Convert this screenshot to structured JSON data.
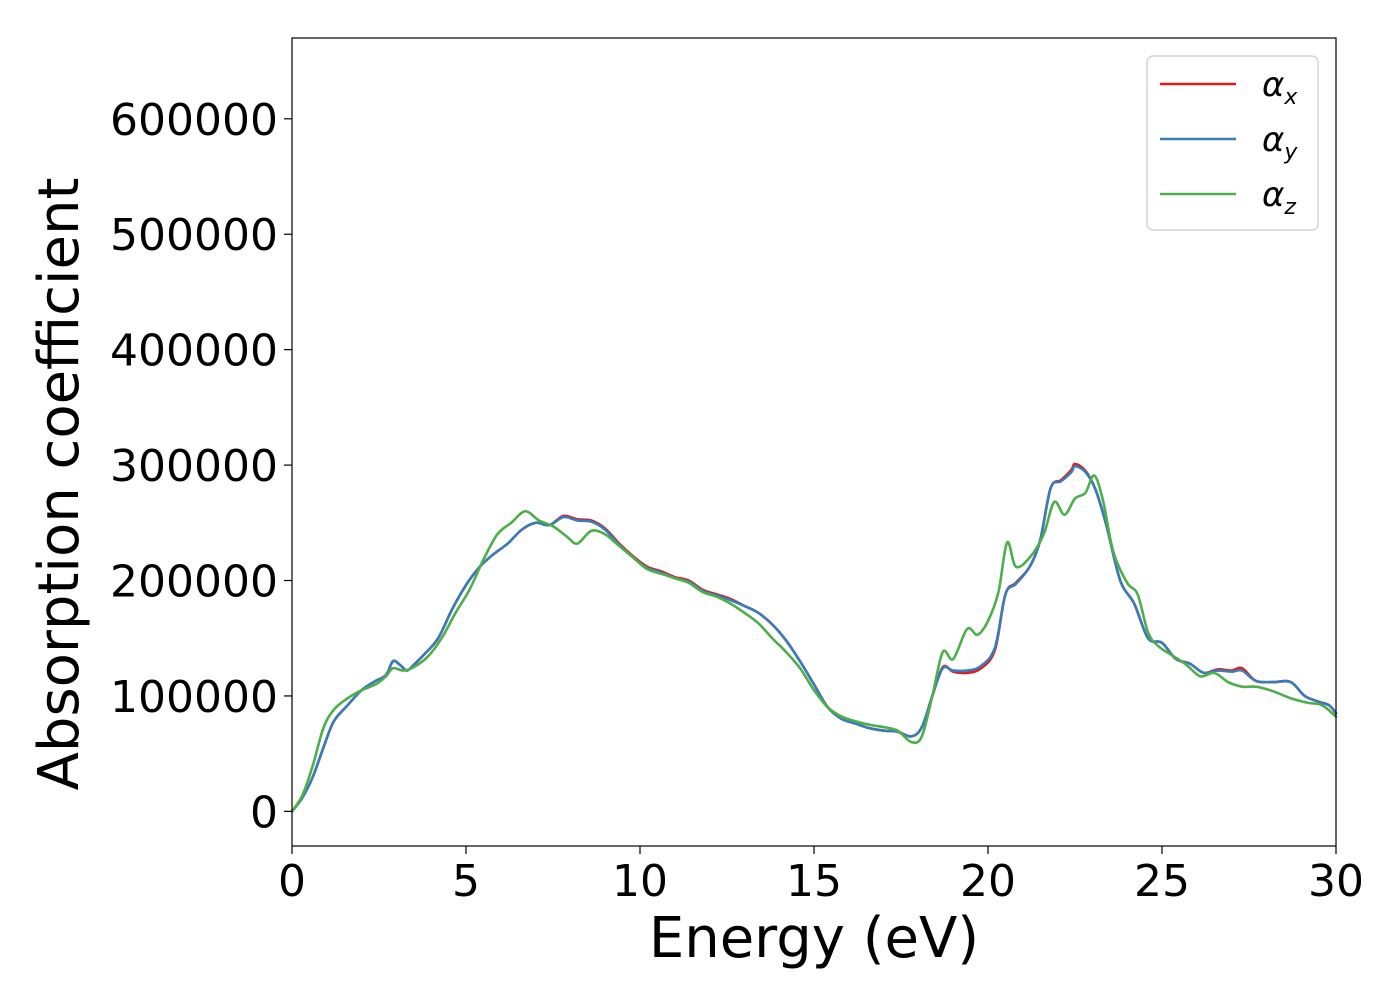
{
  "chart_data": {
    "type": "line",
    "title": "",
    "xlabel": "Energy (eV)",
    "ylabel": "Absorption coefficient",
    "xlim": [
      0,
      30
    ],
    "ylim": [
      -30000,
      670000
    ],
    "xticks": [
      0,
      5,
      10,
      15,
      20,
      25,
      30
    ],
    "yticks": [
      0,
      100000,
      200000,
      300000,
      400000,
      500000,
      600000
    ],
    "xtick_labels": [
      "0",
      "5",
      "10",
      "15",
      "20",
      "25",
      "30"
    ],
    "ytick_labels": [
      "0",
      "100000",
      "200000",
      "300000",
      "400000",
      "500000",
      "600000"
    ],
    "grid": false,
    "legend_position": "top-right",
    "series": [
      {
        "name": "αx",
        "symbol": "α",
        "subscript": "x",
        "color": "#e41a1c",
        "points": [
          [
            0,
            0
          ],
          [
            0.3,
            12000
          ],
          [
            0.6,
            30000
          ],
          [
            0.9,
            55000
          ],
          [
            1.2,
            78000
          ],
          [
            1.6,
            92000
          ],
          [
            2,
            105000
          ],
          [
            2.4,
            113000
          ],
          [
            2.7,
            118000
          ],
          [
            2.9,
            130000
          ],
          [
            3.1,
            127000
          ],
          [
            3.3,
            122000
          ],
          [
            3.5,
            127000
          ],
          [
            3.8,
            136000
          ],
          [
            4.2,
            150000
          ],
          [
            4.6,
            175000
          ],
          [
            5,
            196000
          ],
          [
            5.4,
            212000
          ],
          [
            5.8,
            223000
          ],
          [
            6.2,
            232000
          ],
          [
            6.6,
            244000
          ],
          [
            7,
            250000
          ],
          [
            7.4,
            248000
          ],
          [
            7.8,
            256000
          ],
          [
            8.2,
            253000
          ],
          [
            8.6,
            252000
          ],
          [
            9,
            245000
          ],
          [
            9.4,
            232000
          ],
          [
            9.8,
            221000
          ],
          [
            10.2,
            212000
          ],
          [
            10.6,
            208000
          ],
          [
            11,
            203000
          ],
          [
            11.4,
            200000
          ],
          [
            11.8,
            192000
          ],
          [
            12.2,
            188000
          ],
          [
            12.6,
            184000
          ],
          [
            13,
            178000
          ],
          [
            13.4,
            172000
          ],
          [
            13.8,
            162000
          ],
          [
            14.2,
            148000
          ],
          [
            14.6,
            130000
          ],
          [
            15,
            110000
          ],
          [
            15.4,
            90000
          ],
          [
            15.8,
            80000
          ],
          [
            16.2,
            76000
          ],
          [
            16.6,
            72000
          ],
          [
            17,
            70000
          ],
          [
            17.4,
            69000
          ],
          [
            17.8,
            65000
          ],
          [
            18.1,
            73000
          ],
          [
            18.4,
            100000
          ],
          [
            18.7,
            125000
          ],
          [
            19,
            121000
          ],
          [
            19.4,
            120000
          ],
          [
            19.8,
            124000
          ],
          [
            20.2,
            140000
          ],
          [
            20.5,
            188000
          ],
          [
            20.8,
            198000
          ],
          [
            21.2,
            212000
          ],
          [
            21.5,
            235000
          ],
          [
            21.8,
            280000
          ],
          [
            22.1,
            287000
          ],
          [
            22.4,
            296000
          ],
          [
            22.5,
            301000
          ],
          [
            22.8,
            295000
          ],
          [
            23.1,
            278000
          ],
          [
            23.4,
            248000
          ],
          [
            23.8,
            200000
          ],
          [
            24.2,
            180000
          ],
          [
            24.6,
            150000
          ],
          [
            25,
            146000
          ],
          [
            25.4,
            132000
          ],
          [
            25.8,
            128000
          ],
          [
            26.2,
            120000
          ],
          [
            26.6,
            123000
          ],
          [
            27,
            122000
          ],
          [
            27.3,
            124000
          ],
          [
            27.7,
            113000
          ],
          [
            28.2,
            112000
          ],
          [
            28.7,
            112000
          ],
          [
            29.1,
            100000
          ],
          [
            29.5,
            95000
          ],
          [
            29.8,
            92000
          ],
          [
            30,
            85000
          ]
        ]
      },
      {
        "name": "αy",
        "symbol": "α",
        "subscript": "y",
        "color": "#377eb8",
        "points": [
          [
            0,
            0
          ],
          [
            0.3,
            12000
          ],
          [
            0.6,
            30000
          ],
          [
            0.9,
            55000
          ],
          [
            1.2,
            78000
          ],
          [
            1.6,
            92000
          ],
          [
            2,
            105000
          ],
          [
            2.4,
            113000
          ],
          [
            2.7,
            118000
          ],
          [
            2.9,
            130000
          ],
          [
            3.1,
            127000
          ],
          [
            3.3,
            122000
          ],
          [
            3.5,
            127000
          ],
          [
            3.8,
            136000
          ],
          [
            4.2,
            150000
          ],
          [
            4.6,
            175000
          ],
          [
            5,
            196000
          ],
          [
            5.4,
            212000
          ],
          [
            5.8,
            223000
          ],
          [
            6.2,
            232000
          ],
          [
            6.6,
            244000
          ],
          [
            7,
            250000
          ],
          [
            7.4,
            248000
          ],
          [
            7.8,
            255000
          ],
          [
            8.2,
            252000
          ],
          [
            8.6,
            251000
          ],
          [
            9,
            244000
          ],
          [
            9.4,
            231000
          ],
          [
            9.8,
            220000
          ],
          [
            10.2,
            211000
          ],
          [
            10.6,
            207000
          ],
          [
            11,
            202000
          ],
          [
            11.4,
            199000
          ],
          [
            11.8,
            191000
          ],
          [
            12.2,
            187000
          ],
          [
            12.6,
            183000
          ],
          [
            13,
            178000
          ],
          [
            13.4,
            172000
          ],
          [
            13.8,
            162000
          ],
          [
            14.2,
            148000
          ],
          [
            14.6,
            130000
          ],
          [
            15,
            110000
          ],
          [
            15.4,
            90000
          ],
          [
            15.8,
            80000
          ],
          [
            16.2,
            76000
          ],
          [
            16.6,
            72000
          ],
          [
            17,
            70000
          ],
          [
            17.4,
            69000
          ],
          [
            17.8,
            65000
          ],
          [
            18.1,
            73000
          ],
          [
            18.4,
            100000
          ],
          [
            18.7,
            124000
          ],
          [
            19,
            122000
          ],
          [
            19.4,
            122000
          ],
          [
            19.8,
            126000
          ],
          [
            20.2,
            142000
          ],
          [
            20.5,
            188000
          ],
          [
            20.8,
            197000
          ],
          [
            21.2,
            212000
          ],
          [
            21.5,
            235000
          ],
          [
            21.8,
            280000
          ],
          [
            22.1,
            286000
          ],
          [
            22.4,
            294000
          ],
          [
            22.5,
            299000
          ],
          [
            22.8,
            294000
          ],
          [
            23.1,
            278000
          ],
          [
            23.4,
            248000
          ],
          [
            23.8,
            200000
          ],
          [
            24.2,
            180000
          ],
          [
            24.6,
            150000
          ],
          [
            25,
            146000
          ],
          [
            25.4,
            132000
          ],
          [
            25.8,
            128000
          ],
          [
            26.2,
            120000
          ],
          [
            26.6,
            122000
          ],
          [
            27,
            121000
          ],
          [
            27.3,
            122000
          ],
          [
            27.7,
            113000
          ],
          [
            28.2,
            112000
          ],
          [
            28.7,
            112000
          ],
          [
            29.1,
            100000
          ],
          [
            29.5,
            95000
          ],
          [
            29.8,
            92000
          ],
          [
            30,
            85000
          ]
        ]
      },
      {
        "name": "αz",
        "symbol": "α",
        "subscript": "z",
        "color": "#4daf4a",
        "points": [
          [
            0,
            0
          ],
          [
            0.3,
            14000
          ],
          [
            0.6,
            40000
          ],
          [
            0.9,
            72000
          ],
          [
            1.2,
            88000
          ],
          [
            1.6,
            98000
          ],
          [
            2,
            105000
          ],
          [
            2.4,
            110000
          ],
          [
            2.7,
            117000
          ],
          [
            2.9,
            124000
          ],
          [
            3.2,
            122000
          ],
          [
            3.5,
            125000
          ],
          [
            3.9,
            134000
          ],
          [
            4.3,
            150000
          ],
          [
            4.7,
            172000
          ],
          [
            5.1,
            192000
          ],
          [
            5.5,
            218000
          ],
          [
            5.9,
            240000
          ],
          [
            6.3,
            250000
          ],
          [
            6.7,
            260000
          ],
          [
            7.1,
            252000
          ],
          [
            7.5,
            247000
          ],
          [
            7.9,
            238000
          ],
          [
            8.2,
            232000
          ],
          [
            8.6,
            243000
          ],
          [
            9,
            240000
          ],
          [
            9.4,
            230000
          ],
          [
            9.8,
            220000
          ],
          [
            10.2,
            210000
          ],
          [
            10.6,
            206000
          ],
          [
            11,
            202000
          ],
          [
            11.4,
            198000
          ],
          [
            11.8,
            190000
          ],
          [
            12.2,
            186000
          ],
          [
            12.6,
            180000
          ],
          [
            13,
            172000
          ],
          [
            13.4,
            163000
          ],
          [
            13.8,
            150000
          ],
          [
            14.2,
            138000
          ],
          [
            14.6,
            124000
          ],
          [
            15,
            105000
          ],
          [
            15.4,
            90000
          ],
          [
            15.8,
            82000
          ],
          [
            16.2,
            78000
          ],
          [
            16.6,
            75000
          ],
          [
            17,
            73000
          ],
          [
            17.4,
            70000
          ],
          [
            17.8,
            60000
          ],
          [
            18.1,
            65000
          ],
          [
            18.4,
            100000
          ],
          [
            18.7,
            138000
          ],
          [
            19,
            132000
          ],
          [
            19.4,
            158000
          ],
          [
            19.7,
            153000
          ],
          [
            20,
            165000
          ],
          [
            20.3,
            190000
          ],
          [
            20.55,
            233000
          ],
          [
            20.8,
            212000
          ],
          [
            21.2,
            220000
          ],
          [
            21.6,
            240000
          ],
          [
            21.9,
            268000
          ],
          [
            22.2,
            257000
          ],
          [
            22.5,
            271000
          ],
          [
            22.8,
            276000
          ],
          [
            23.05,
            291000
          ],
          [
            23.3,
            270000
          ],
          [
            23.6,
            225000
          ],
          [
            24,
            198000
          ],
          [
            24.3,
            188000
          ],
          [
            24.6,
            155000
          ],
          [
            24.9,
            143000
          ],
          [
            25.3,
            135000
          ],
          [
            25.7,
            127000
          ],
          [
            26.1,
            117000
          ],
          [
            26.5,
            120000
          ],
          [
            26.9,
            112000
          ],
          [
            27.3,
            108000
          ],
          [
            27.7,
            108000
          ],
          [
            28.2,
            104000
          ],
          [
            28.7,
            98000
          ],
          [
            29.2,
            94000
          ],
          [
            29.6,
            92000
          ],
          [
            30,
            82000
          ]
        ]
      }
    ]
  }
}
